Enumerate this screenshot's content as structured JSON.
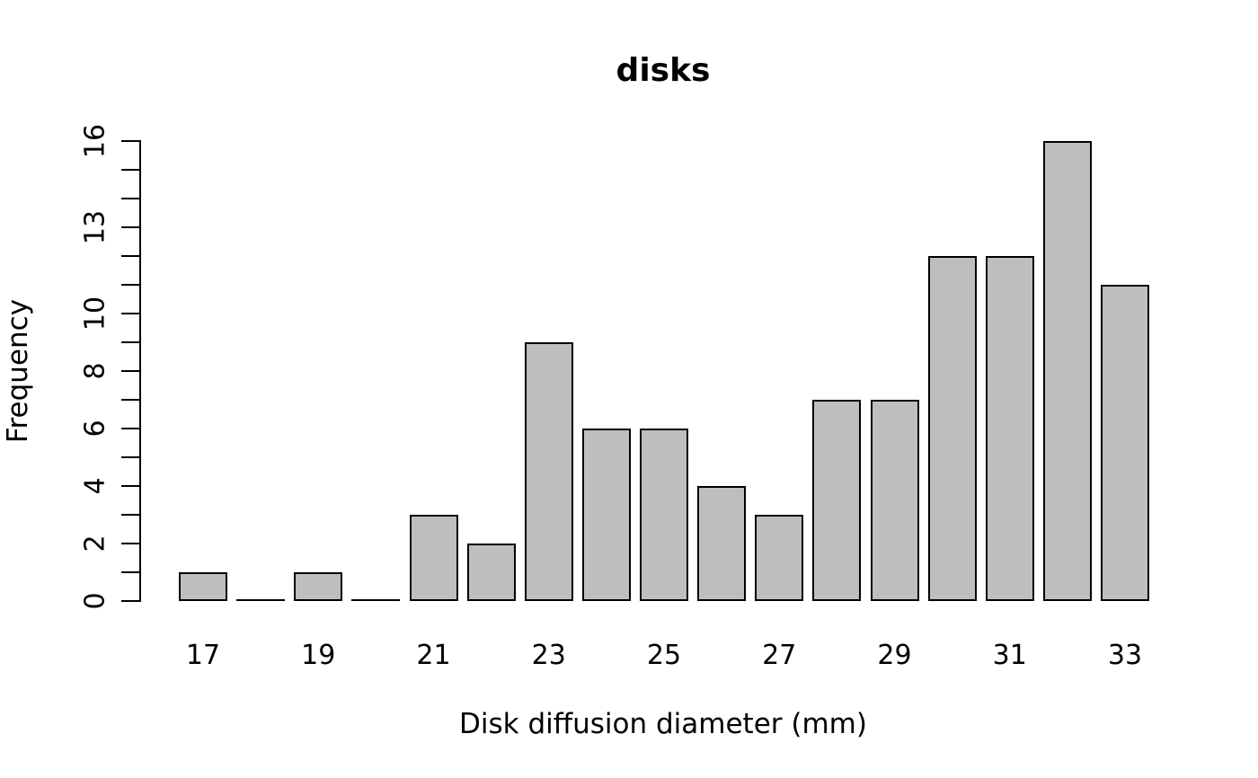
{
  "chart_data": {
    "type": "bar",
    "subtype": "histogram",
    "title": "disks",
    "xlabel": "Disk diffusion diameter (mm)",
    "ylabel": "Frequency",
    "categories": [
      17,
      18,
      19,
      20,
      21,
      22,
      23,
      24,
      25,
      26,
      27,
      28,
      29,
      30,
      31,
      32,
      33
    ],
    "values": [
      1,
      0,
      1,
      0,
      3,
      2,
      9,
      6,
      6,
      4,
      3,
      7,
      7,
      12,
      12,
      16,
      11
    ],
    "x_tick_labels": [
      "17",
      "19",
      "21",
      "23",
      "25",
      "27",
      "29",
      "31",
      "33"
    ],
    "x_tick_values": [
      17,
      19,
      21,
      23,
      25,
      27,
      29,
      31,
      33
    ],
    "y_tick_values": [
      0,
      1,
      2,
      3,
      4,
      5,
      6,
      7,
      8,
      9,
      10,
      11,
      12,
      13,
      14,
      15,
      16
    ],
    "y_label_values": [
      0,
      2,
      4,
      6,
      8,
      10,
      13,
      16
    ],
    "ylim": [
      0,
      16
    ],
    "grid": false,
    "legend": null,
    "colors": {
      "bar_fill": "#bebebe",
      "bar_border": "#000000",
      "axis": "#000000",
      "text": "#000000",
      "background": "#ffffff"
    }
  }
}
